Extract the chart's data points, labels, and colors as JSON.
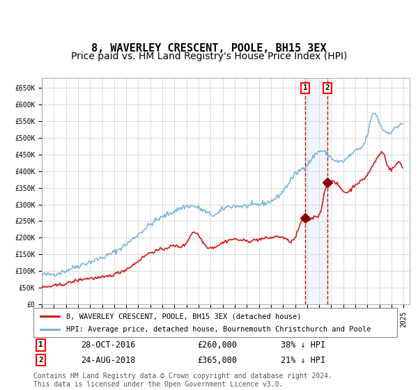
{
  "title": "8, WAVERLEY CRESCENT, POOLE, BH15 3EX",
  "subtitle": "Price paid vs. HM Land Registry's House Price Index (HPI)",
  "legend_line1": "8, WAVERLEY CRESCENT, POOLE, BH15 3EX (detached house)",
  "legend_line2": "HPI: Average price, detached house, Bournemouth Christchurch and Poole",
  "transaction1_label": "1",
  "transaction1_date": "28-OCT-2016",
  "transaction1_price": "£260,000",
  "transaction1_hpi": "38% ↓ HPI",
  "transaction1_date_num": "2016-10-28",
  "transaction2_label": "2",
  "transaction2_date": "24-AUG-2018",
  "transaction2_price": "£365,000",
  "transaction2_hpi": "21% ↓ HPI",
  "transaction2_date_num": "2018-08-24",
  "footnote": "Contains HM Land Registry data © Crown copyright and database right 2024.\nThis data is licensed under the Open Government Licence v3.0.",
  "hpi_color": "#6baed6",
  "price_color": "#cc0000",
  "marker_color": "#8b0000",
  "dashed_line_color": "#cc0000",
  "shade_color": "#d0e4f7",
  "background_color": "#ffffff",
  "grid_color": "#cccccc",
  "ylim": [
    0,
    680000
  ],
  "yticks": [
    0,
    50000,
    100000,
    150000,
    200000,
    250000,
    300000,
    350000,
    400000,
    450000,
    500000,
    550000,
    600000,
    650000
  ],
  "title_fontsize": 11,
  "subtitle_fontsize": 10,
  "axis_fontsize": 8,
  "legend_fontsize": 8,
  "footnote_fontsize": 7
}
